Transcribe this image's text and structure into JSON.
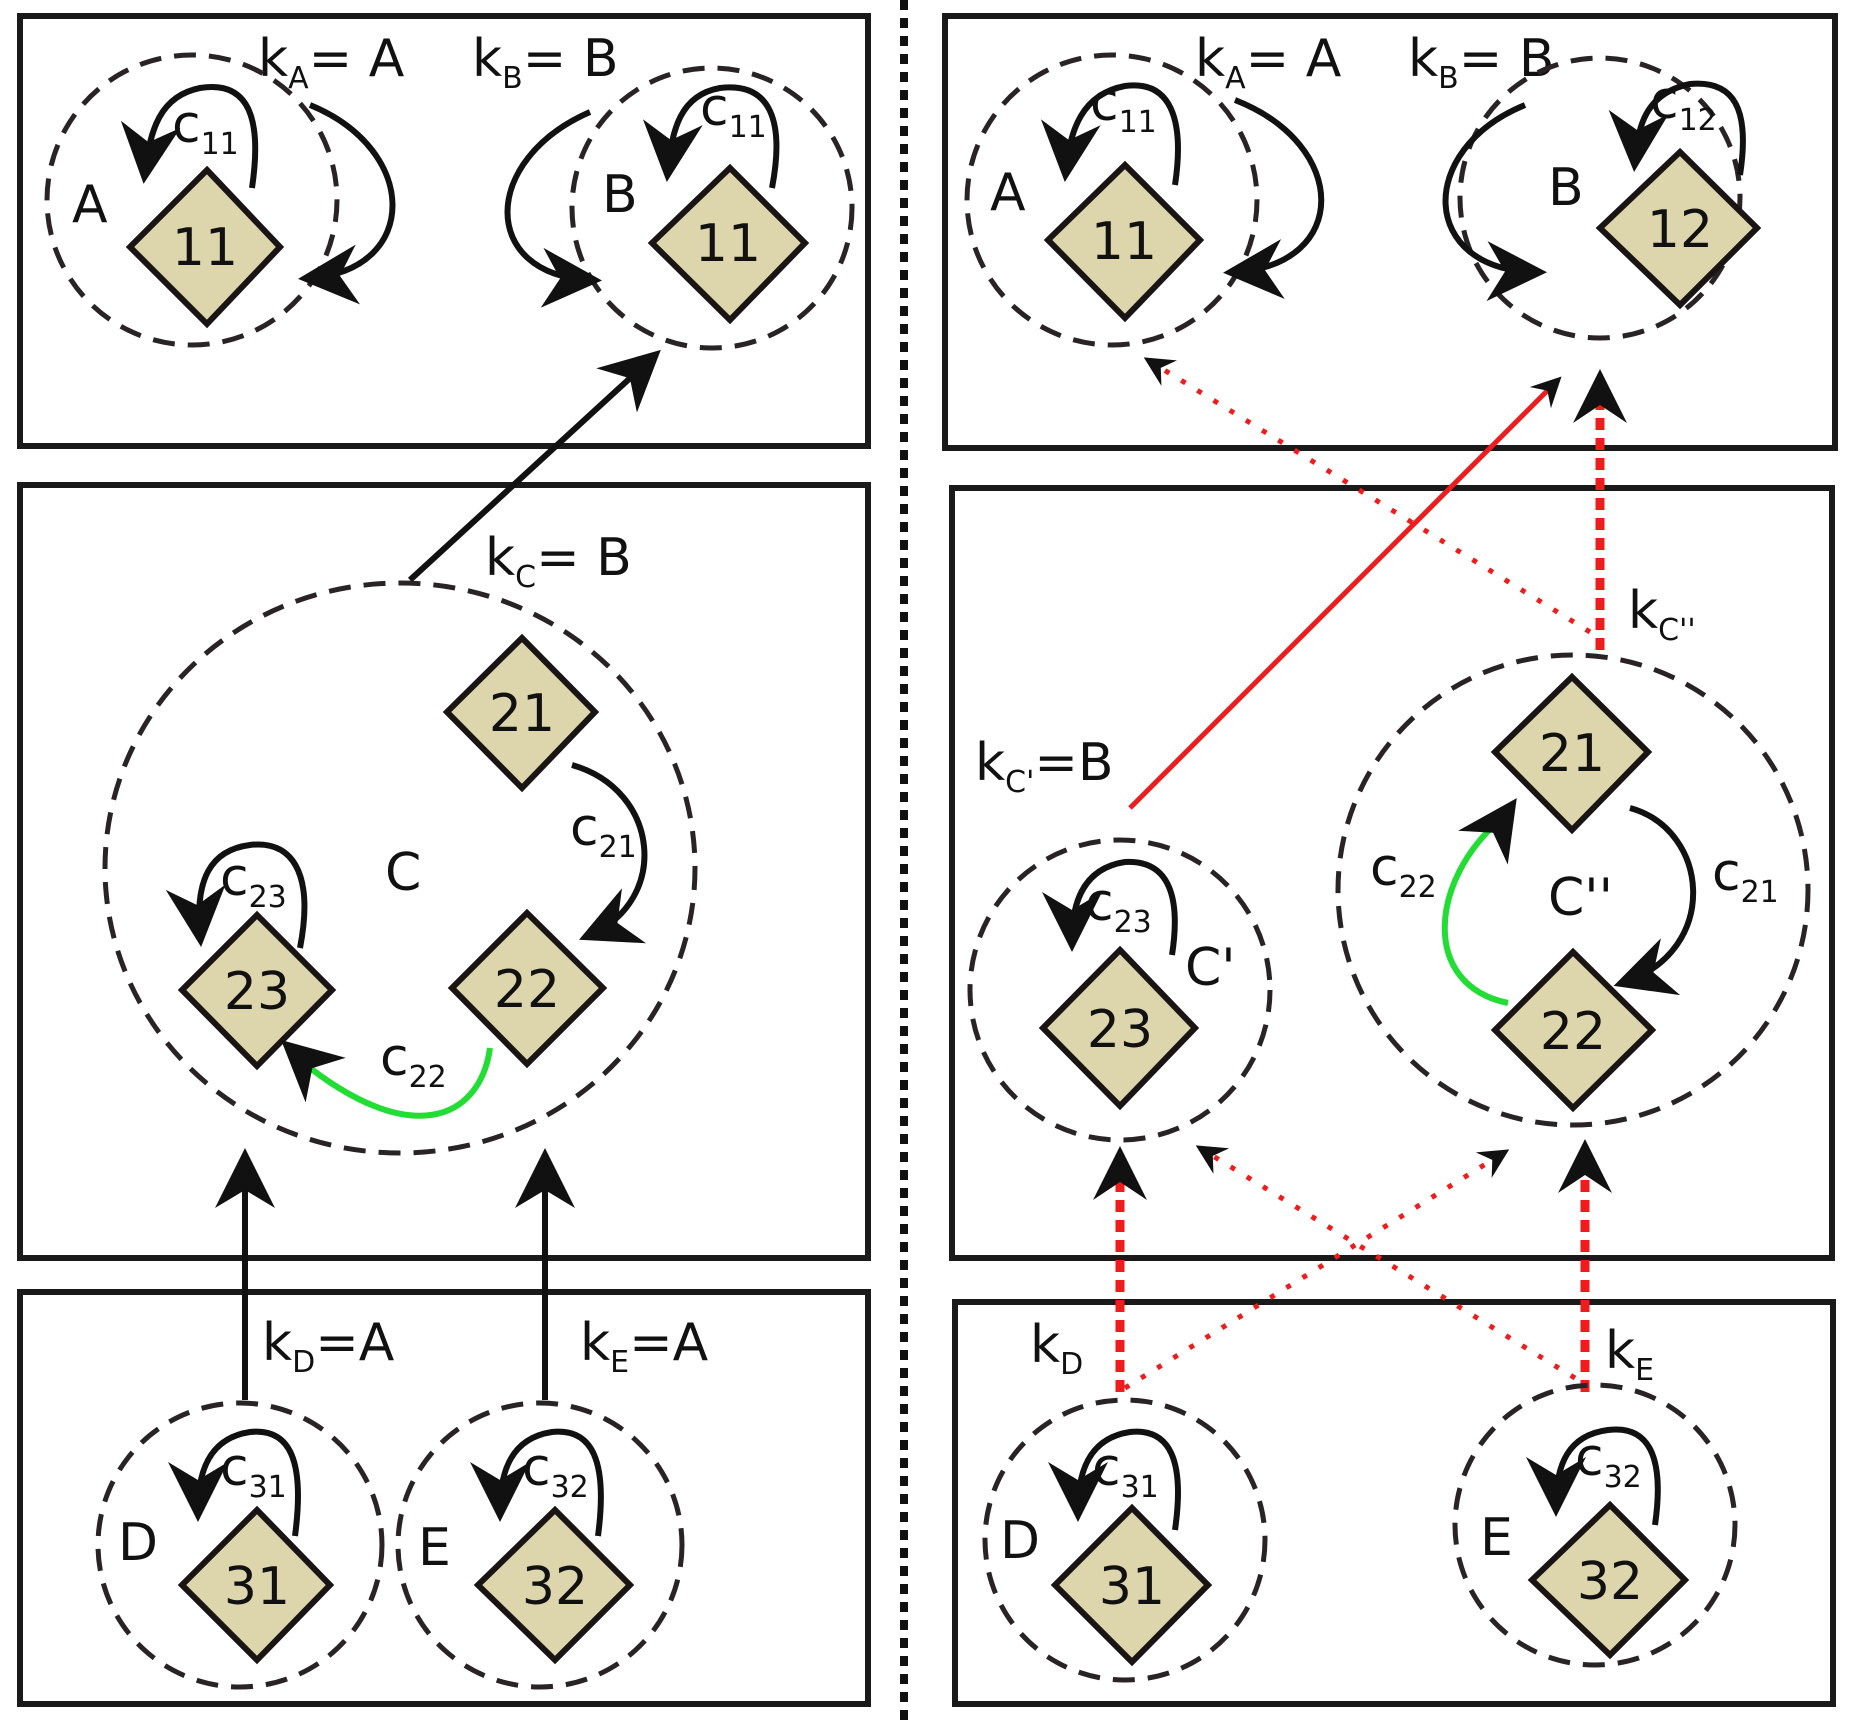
{
  "left": {
    "top": {
      "key_a": {
        "k": "k",
        "sub": "A",
        "rest": "= A"
      },
      "key_b": {
        "k": "k",
        "sub": "B",
        "rest": "= B"
      },
      "cluster_a": {
        "name": "A",
        "node": "11",
        "c": "c",
        "c_sub": "11"
      },
      "cluster_b": {
        "name": "B",
        "node": "11",
        "c": "c",
        "c_sub": "11"
      }
    },
    "middle": {
      "key_c": {
        "k": "k",
        "sub": "C",
        "rest": "= B"
      },
      "cluster_c": {
        "name": "C"
      },
      "nodes": {
        "n21": "21",
        "n22": "22",
        "n23": "23"
      },
      "c21": {
        "c": "c",
        "sub": "21"
      },
      "c22": {
        "c": "c",
        "sub": "22"
      },
      "c23": {
        "c": "c",
        "sub": "23"
      }
    },
    "bottom": {
      "key_d": {
        "k": "k",
        "sub": "D",
        "rest": "=A"
      },
      "key_e": {
        "k": "k",
        "sub": "E",
        "rest": "=A"
      },
      "cluster_d": {
        "name": "D",
        "node": "31",
        "c": "c",
        "c_sub": "31"
      },
      "cluster_e": {
        "name": "E",
        "node": "32",
        "c": "c",
        "c_sub": "32"
      }
    }
  },
  "right": {
    "top": {
      "key_a": {
        "k": "k",
        "sub": "A",
        "rest": "= A"
      },
      "key_b": {
        "k": "k",
        "sub": "B",
        "rest": "= B"
      },
      "cluster_a": {
        "name": "A",
        "node": "11",
        "c": "c",
        "c_sub": "11"
      },
      "cluster_b": {
        "name": "B",
        "node": "12",
        "c": "c",
        "c_sub": "12"
      }
    },
    "middle": {
      "key_c1": {
        "k": "k",
        "sub": "C'",
        "rest": "=B"
      },
      "key_c2": {
        "k": "k",
        "sub": "C''"
      },
      "cluster_c1": {
        "name": "C'",
        "node": "23",
        "c": "c",
        "c_sub": "23"
      },
      "cluster_c2": {
        "name": "C''"
      },
      "nodes": {
        "n21": "21",
        "n22": "22"
      },
      "c21": {
        "c": "c",
        "sub": "21"
      },
      "c22": {
        "c": "c",
        "sub": "22"
      }
    },
    "bottom": {
      "key_d": {
        "k": "k",
        "sub": "D"
      },
      "key_e": {
        "k": "k",
        "sub": "E"
      },
      "cluster_d": {
        "name": "D",
        "node": "31",
        "c": "c",
        "c_sub": "31"
      },
      "cluster_e": {
        "name": "E",
        "node": "32",
        "c": "c",
        "c_sub": "32"
      }
    }
  }
}
